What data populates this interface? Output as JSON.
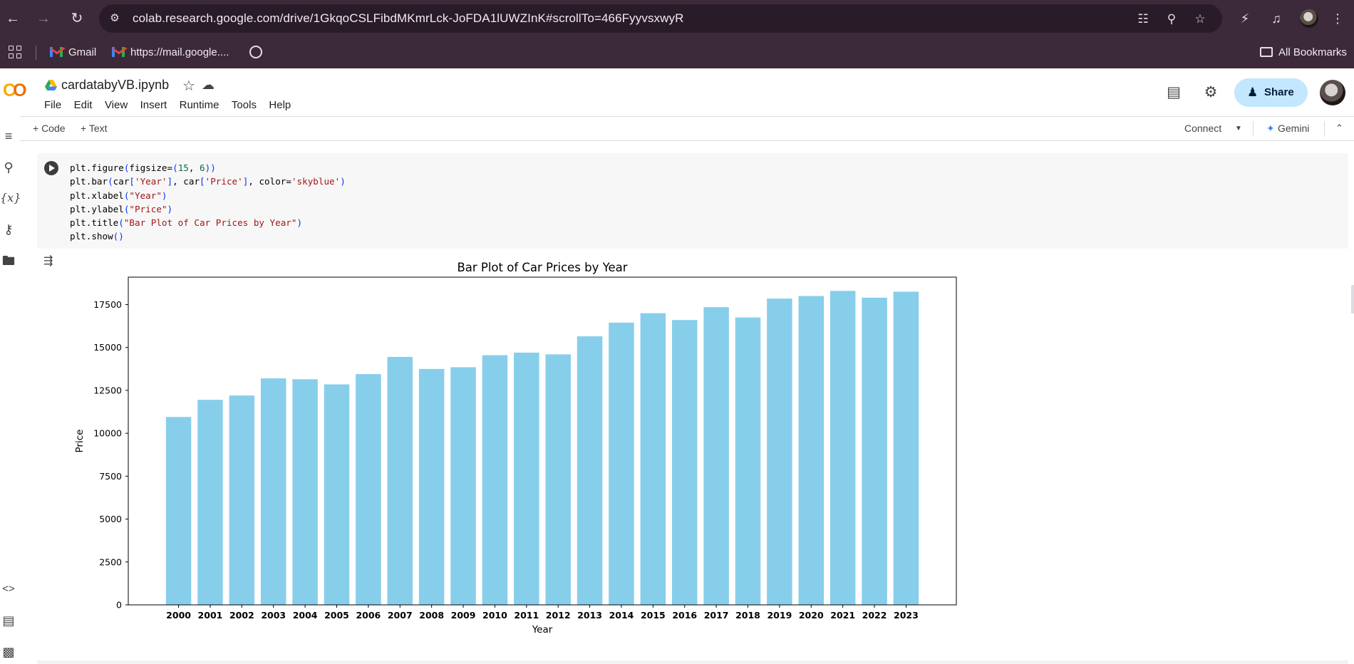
{
  "browser": {
    "url": "colab.research.google.com/drive/1GkqoCSLFibdMKmrLck-JoFDA1lUWZInK#scrollTo=466FyyvsxwyR",
    "bookmarks": [
      {
        "label": "Gmail"
      },
      {
        "label": "https://mail.google...."
      }
    ],
    "all_bookmarks": "All Bookmarks"
  },
  "notebook": {
    "title": "cardatabyVB.ipynb",
    "menu": [
      "File",
      "Edit",
      "View",
      "Insert",
      "Runtime",
      "Tools",
      "Help"
    ],
    "share_label": "Share"
  },
  "toolbar": {
    "code_label": "+ Code",
    "text_label": "+ Text",
    "connect_label": "Connect",
    "gemini_label": "Gemini"
  },
  "cell": {
    "code_lines": [
      "plt.figure(figsize=(15, 6))",
      "plt.bar(car['Year'], car['Price'], color='skyblue')",
      "plt.xlabel(\"Year\")",
      "plt.ylabel(\"Price\")",
      "plt.title(\"Bar Plot of Car Prices by Year\")",
      "plt.show()"
    ]
  },
  "chart_data": {
    "type": "bar",
    "title": "Bar Plot of Car Prices by Year",
    "xlabel": "Year",
    "ylabel": "Price",
    "categories": [
      "2000",
      "2001",
      "2002",
      "2003",
      "2004",
      "2005",
      "2006",
      "2007",
      "2008",
      "2009",
      "2010",
      "2011",
      "2012",
      "2013",
      "2014",
      "2015",
      "2016",
      "2017",
      "2018",
      "2019",
      "2020",
      "2021",
      "2022",
      "2023"
    ],
    "values": [
      10950,
      11950,
      12200,
      13200,
      13150,
      12850,
      13450,
      14450,
      13750,
      13850,
      14550,
      14700,
      14600,
      15650,
      16450,
      17000,
      16600,
      17350,
      16750,
      17850,
      18000,
      18300,
      17900,
      18250
    ],
    "ylim": [
      0,
      19100
    ],
    "yticks": [
      0,
      2500,
      5000,
      7500,
      10000,
      12500,
      15000,
      17500
    ],
    "color": "#87ceeb",
    "grid": false
  }
}
